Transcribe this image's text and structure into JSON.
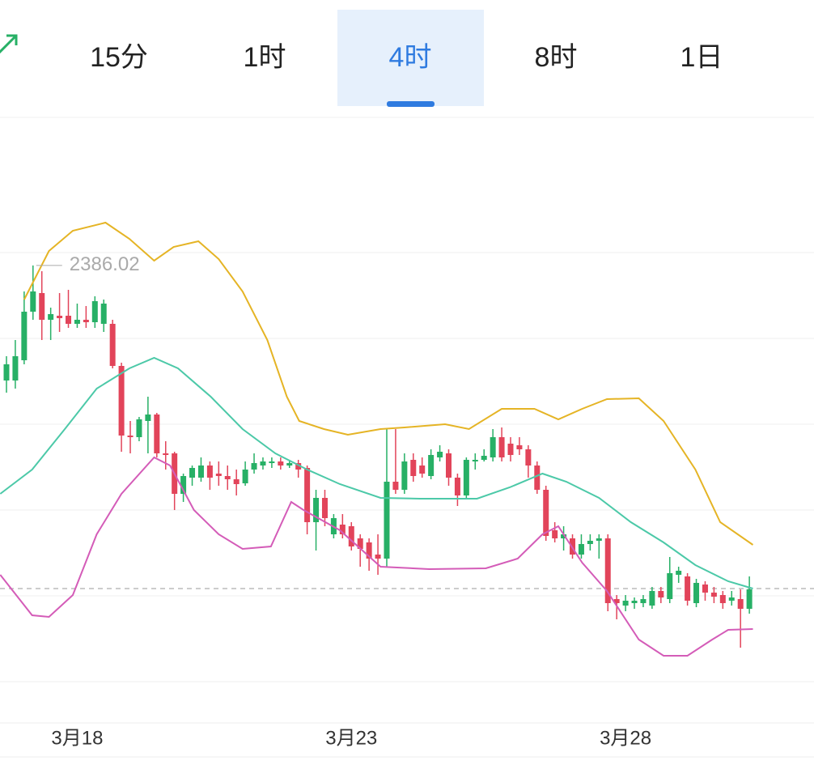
{
  "tabs": [
    "15分",
    "1时",
    "4时",
    "8时",
    "1日"
  ],
  "active_tab": 2,
  "chart_data": {
    "type": "candlestick",
    "categories": [
      null,
      null,
      null,
      null,
      null,
      null,
      null,
      null,
      "3月18",
      null,
      null,
      null,
      null,
      null,
      null,
      null,
      null,
      null,
      null,
      null,
      null,
      null,
      null,
      null,
      null,
      null,
      null,
      null,
      null,
      null,
      null,
      null,
      null,
      null,
      null,
      null,
      null,
      null,
      null,
      "3月23",
      null,
      null,
      null,
      null,
      null,
      null,
      null,
      null,
      null,
      null,
      null,
      null,
      null,
      null,
      null,
      null,
      null,
      null,
      null,
      null,
      null,
      null,
      null,
      null,
      null,
      null,
      null,
      null,
      null,
      null,
      "3月28",
      null,
      null,
      null,
      null,
      null,
      null,
      null,
      null,
      null,
      null,
      null,
      null,
      null,
      null
    ],
    "open": [
      2357.6,
      2357.6,
      2362.6,
      2374.6,
      2379.2,
      2372.6,
      2373.6,
      2373.6,
      2371.6,
      2372.6,
      2372.0,
      2371.6,
      2371.6,
      2361.2,
      2344.0,
      2343.6,
      2347.6,
      2349.2,
      2339.6,
      2339.6,
      2329.6,
      2333.6,
      2333.6,
      2336.6,
      2334.6,
      2334.0,
      2333.2,
      2332.2,
      2335.6,
      2336.6,
      2337.2,
      2337.6,
      2336.6,
      2337.2,
      2336.0,
      2322.6,
      2328.6,
      2319.6,
      2322.0,
      2321.6,
      2318.6,
      2317.6,
      2314.6,
      2313.6,
      2332.6,
      2330.6,
      2338.0,
      2336.6,
      2334.0,
      2338.6,
      2339.6,
      2333.6,
      2329.2,
      2337.6,
      2338.0,
      2338.6,
      2343.6,
      2342.0,
      2341.6,
      2340.6,
      2336.6,
      2330.6,
      2320.6,
      2318.6,
      2318.6,
      2314.6,
      2317.2,
      2318.0,
      2318.6,
      2303.6,
      2302.0,
      2302.6,
      2302.6,
      2302.0,
      2305.6,
      2303.6,
      2309.6,
      2309.2,
      2302.6,
      2307.2,
      2305.2,
      2304.6,
      2303.2,
      2303.6,
      2301.2
    ],
    "high": [
      2363.6,
      2367.6,
      2379.6,
      2386.02,
      2384.6,
      2375.6,
      2379.2,
      2380.0,
      2376.6,
      2376.0,
      2378.4,
      2377.6,
      2372.6,
      2362.0,
      2347.6,
      2348.6,
      2353.6,
      2349.6,
      2342.6,
      2340.0,
      2334.6,
      2336.6,
      2338.6,
      2337.6,
      2337.6,
      2336.6,
      2335.6,
      2337.6,
      2339.6,
      2338.6,
      2338.6,
      2338.6,
      2338.0,
      2338.0,
      2336.6,
      2330.6,
      2330.6,
      2324.6,
      2324.6,
      2322.6,
      2319.6,
      2318.6,
      2319.6,
      2345.6,
      2345.6,
      2339.6,
      2339.6,
      2338.6,
      2340.6,
      2341.6,
      2340.6,
      2334.6,
      2338.6,
      2339.6,
      2340.6,
      2345.6,
      2346.0,
      2343.6,
      2343.6,
      2341.6,
      2337.6,
      2331.6,
      2322.6,
      2321.6,
      2319.6,
      2319.6,
      2319.6,
      2319.6,
      2319.6,
      2304.6,
      2304.6,
      2304.0,
      2304.6,
      2306.6,
      2306.6,
      2314.0,
      2311.6,
      2310.0,
      2308.6,
      2308.0,
      2306.6,
      2305.6,
      2305.6,
      2306.0,
      2309.2
    ],
    "low": [
      2354.6,
      2355.6,
      2361.6,
      2372.6,
      2367.6,
      2367.6,
      2369.6,
      2370.6,
      2370.6,
      2370.6,
      2370.6,
      2369.6,
      2360.6,
      2340.0,
      2339.6,
      2342.6,
      2339.6,
      2338.6,
      2335.6,
      2325.6,
      2327.6,
      2331.6,
      2332.6,
      2330.6,
      2331.6,
      2330.6,
      2329.2,
      2331.6,
      2334.6,
      2335.6,
      2336.0,
      2335.6,
      2336.0,
      2333.6,
      2319.6,
      2315.6,
      2321.6,
      2318.6,
      2318.6,
      2315.6,
      2311.6,
      2310.6,
      2309.6,
      2311.6,
      2329.6,
      2329.6,
      2332.6,
      2333.6,
      2333.2,
      2337.6,
      2331.6,
      2326.6,
      2328.6,
      2335.6,
      2337.6,
      2337.6,
      2337.6,
      2337.6,
      2339.2,
      2333.6,
      2329.6,
      2318.0,
      2317.6,
      2315.6,
      2313.6,
      2313.6,
      2315.6,
      2313.6,
      2300.6,
      2298.6,
      2300.6,
      2301.2,
      2301.6,
      2301.2,
      2302.6,
      2302.6,
      2307.6,
      2302.0,
      2301.6,
      2303.2,
      2302.6,
      2301.2,
      2302.0,
      2291.6,
      2300.0
    ],
    "close": [
      2361.6,
      2363.6,
      2374.6,
      2379.6,
      2372.6,
      2374.0,
      2373.0,
      2371.6,
      2372.6,
      2372.0,
      2377.2,
      2376.6,
      2361.2,
      2344.0,
      2343.6,
      2348.0,
      2349.2,
      2339.6,
      2339.2,
      2329.6,
      2334.0,
      2336.0,
      2336.6,
      2333.6,
      2334.0,
      2333.2,
      2332.0,
      2335.6,
      2337.2,
      2337.6,
      2337.6,
      2336.6,
      2337.2,
      2335.6,
      2322.6,
      2328.6,
      2323.6,
      2323.6,
      2319.6,
      2316.6,
      2316.0,
      2313.6,
      2313.6,
      2332.6,
      2330.6,
      2337.6,
      2334.0,
      2334.6,
      2339.2,
      2340.0,
      2333.6,
      2329.2,
      2338.0,
      2338.0,
      2339.0,
      2343.6,
      2338.6,
      2339.2,
      2340.6,
      2336.6,
      2330.6,
      2319.2,
      2318.6,
      2319.6,
      2314.6,
      2317.2,
      2318.0,
      2318.6,
      2302.6,
      2302.6,
      2303.2,
      2303.2,
      2303.6,
      2305.6,
      2304.0,
      2310.0,
      2310.6,
      2303.2,
      2307.6,
      2305.2,
      2304.2,
      2302.6,
      2304.0,
      2301.2,
      2306.0
    ],
    "up_color": "#27b066",
    "down_color": "#e2445a",
    "lines": [
      {
        "color": "#e5b425",
        "x": [
          2.0,
          4.8,
          7.5,
          11.2,
          13.9,
          16.7,
          18.9,
          21.7,
          24.0,
          26.7,
          29.5,
          31.7,
          33.1,
          35.9,
          38.6,
          42.3,
          45.0,
          49.6,
          52.3,
          56.0,
          59.7,
          62.4,
          65.1,
          67.9,
          71.5,
          74.3,
          77.9,
          80.7,
          84.4
        ],
        "values": [
          2377.6,
          2389.6,
          2394.6,
          2396.6,
          2392.6,
          2387.2,
          2390.6,
          2392.0,
          2387.6,
          2379.6,
          2367.6,
          2353.6,
          2347.6,
          2345.6,
          2344.2,
          2345.6,
          2346.0,
          2346.8,
          2345.6,
          2350.6,
          2350.6,
          2348.0,
          2350.6,
          2353.0,
          2353.2,
          2347.6,
          2335.6,
          2322.6,
          2317.0
        ]
      },
      {
        "color": "#4cc9a8",
        "x": [
          -0.7,
          2.9,
          6.6,
          10.2,
          13.9,
          16.7,
          19.4,
          23.1,
          26.7,
          30.4,
          34.0,
          37.7,
          42.3,
          46.8,
          53.2,
          56.9,
          60.6,
          63.3,
          67.0,
          70.6,
          74.3,
          77.9,
          81.6,
          84.4
        ],
        "values": [
          2329.6,
          2335.6,
          2345.6,
          2355.6,
          2360.6,
          2363.2,
          2360.6,
          2353.6,
          2345.6,
          2339.6,
          2335.6,
          2332.0,
          2328.6,
          2328.4,
          2328.4,
          2331.2,
          2334.6,
          2332.6,
          2328.6,
          2322.6,
          2317.6,
          2312.0,
          2308.0,
          2306.2
        ]
      },
      {
        "color": "#d45cb8",
        "x": [
          -0.7,
          2.9,
          4.8,
          7.5,
          10.2,
          13.0,
          16.7,
          18.5,
          21.2,
          24.0,
          26.7,
          29.9,
          32.2,
          33.6,
          37.7,
          42.3,
          47.8,
          54.2,
          57.8,
          60.6,
          62.4,
          65.1,
          67.9,
          71.5,
          74.3,
          77.0,
          79.8,
          81.6,
          84.4
        ],
        "values": [
          2309.6,
          2299.6,
          2299.2,
          2304.6,
          2319.6,
          2329.6,
          2338.6,
          2336.6,
          2325.6,
          2319.6,
          2316.0,
          2316.6,
          2327.6,
          2325.6,
          2320.6,
          2311.6,
          2311.0,
          2311.2,
          2313.6,
          2319.6,
          2321.6,
          2312.6,
          2305.6,
          2293.6,
          2289.6,
          2289.6,
          2293.6,
          2296.0,
          2296.2
        ]
      }
    ],
    "ylim": [
      2273.0,
      2422.6
    ],
    "yticks": [
      2389.2,
      2368.0,
      2346.8,
      2325.6,
      2304.4,
      2283.2
    ],
    "grid": true,
    "last_price": 2306.2,
    "max_index": 3
  }
}
